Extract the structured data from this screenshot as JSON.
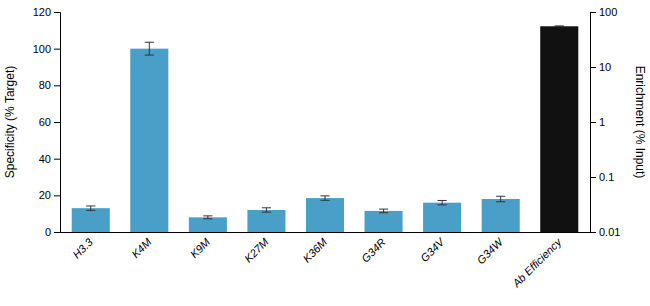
{
  "chart_data": {
    "type": "bar",
    "categories": [
      "H3.3",
      "K4M",
      "K9M",
      "K27M",
      "K36M",
      "G34R",
      "G34V",
      "G34W",
      "Ab Efficiency"
    ],
    "series": [
      {
        "color": "#4A9FC8",
        "values": [
          13.0,
          100.0,
          8.0,
          12.0,
          18.5,
          11.5,
          16.0,
          18.0,
          null
        ],
        "errors": [
          1.2,
          3.5,
          0.8,
          1.2,
          1.2,
          1.0,
          1.2,
          1.5,
          null
        ]
      },
      {
        "color": "#111111",
        "axis": "y2",
        "values": [
          null,
          null,
          null,
          null,
          null,
          null,
          null,
          null,
          55.0
        ],
        "errors": [
          null,
          null,
          null,
          null,
          null,
          null,
          null,
          null,
          0.8
        ]
      }
    ],
    "ylabel": "Specificity (% Target)",
    "y2label": "Enrichment (% Input)",
    "ylim": [
      0,
      120
    ],
    "yticks": [
      0,
      20,
      40,
      60,
      80,
      100,
      120
    ],
    "y2lim": [
      0.01,
      100
    ],
    "y2ticks": [
      0.01,
      0.1,
      1,
      10,
      100
    ],
    "log": "y2",
    "grid": false
  }
}
